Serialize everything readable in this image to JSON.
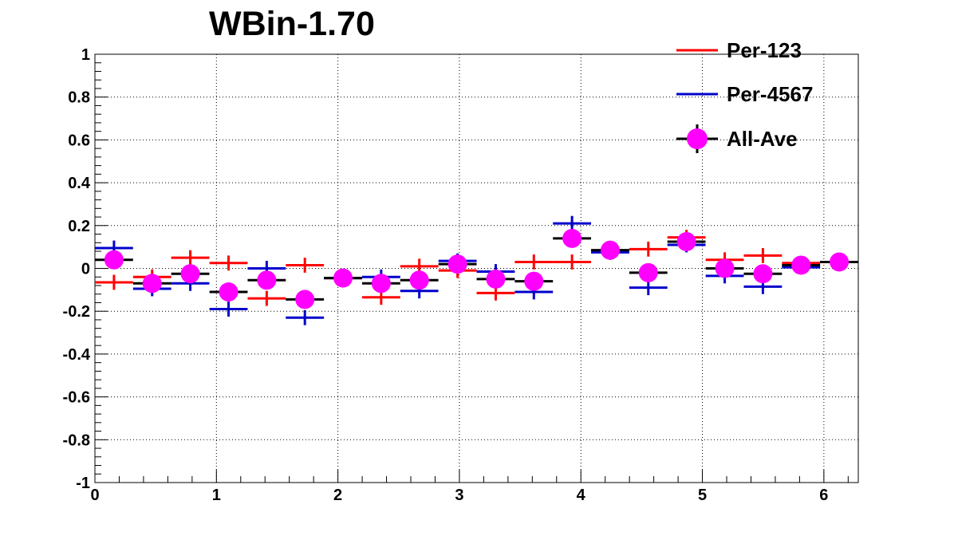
{
  "chart_data": {
    "type": "scatter",
    "title": "WBin-1.70",
    "xlabel": "",
    "ylabel": "",
    "xlim": [
      0,
      6.2832
    ],
    "ylim": [
      -1,
      1
    ],
    "x_ticks": [
      0,
      1,
      2,
      3,
      4,
      5,
      6
    ],
    "y_ticks": [
      -1,
      -0.8,
      -0.6,
      -0.4,
      -0.2,
      0,
      0.2,
      0.4,
      0.6,
      0.8,
      1
    ],
    "y_tick_labels": [
      "-1",
      "-0.8",
      "-0.6",
      "-0.4",
      "-0.2",
      "0",
      "0.2",
      "0.4",
      "0.6",
      "0.8",
      "1"
    ],
    "grid": true,
    "legend_position": "top-right",
    "bin_half_width": 0.157,
    "series": [
      {
        "name": "Per-123",
        "color": "#ff0000",
        "marker": "error-bar",
        "x": [
          0.157,
          0.471,
          0.785,
          1.1,
          1.414,
          1.728,
          2.042,
          2.356,
          2.67,
          2.985,
          3.299,
          3.613,
          3.927,
          4.241,
          4.555,
          4.869,
          5.184,
          5.498,
          5.812,
          6.126
        ],
        "y": [
          -0.065,
          -0.04,
          0.05,
          0.025,
          -0.14,
          0.015,
          -0.045,
          -0.135,
          0.01,
          -0.01,
          -0.115,
          0.03,
          0.03,
          0.08,
          0.09,
          0.145,
          0.04,
          0.06,
          0.025,
          0.03
        ],
        "err": [
          0.035,
          0.035,
          0.035,
          0.035,
          0.035,
          0.035,
          0.03,
          0.035,
          0.035,
          0.035,
          0.035,
          0.035,
          0.035,
          0.035,
          0.035,
          0.035,
          0.035,
          0.035,
          0.03,
          0.03
        ]
      },
      {
        "name": "Per-4567",
        "color": "#0000cc",
        "marker": "error-bar",
        "x": [
          0.157,
          0.471,
          0.785,
          1.1,
          1.414,
          1.728,
          2.042,
          2.356,
          2.67,
          2.985,
          3.299,
          3.613,
          3.927,
          4.241,
          4.555,
          4.869,
          5.184,
          5.498,
          5.812,
          6.126
        ],
        "y": [
          0.095,
          -0.095,
          -0.07,
          -0.19,
          0.0,
          -0.23,
          -0.045,
          -0.04,
          -0.105,
          0.035,
          -0.015,
          -0.11,
          0.21,
          0.075,
          -0.09,
          0.11,
          -0.035,
          -0.085,
          0.005,
          0.03
        ],
        "err": [
          0.035,
          0.035,
          0.035,
          0.035,
          0.035,
          0.035,
          0.03,
          0.035,
          0.035,
          0.035,
          0.035,
          0.035,
          0.035,
          0.035,
          0.035,
          0.035,
          0.035,
          0.035,
          0.03,
          0.03
        ]
      },
      {
        "name": "All-Ave",
        "color": "#ff00ff",
        "marker": "circle",
        "x": [
          0.157,
          0.471,
          0.785,
          1.1,
          1.414,
          1.728,
          2.042,
          2.356,
          2.67,
          2.985,
          3.299,
          3.613,
          3.927,
          4.241,
          4.555,
          4.869,
          5.184,
          5.498,
          5.812,
          6.126
        ],
        "y": [
          0.04,
          -0.07,
          -0.025,
          -0.11,
          -0.055,
          -0.145,
          -0.045,
          -0.07,
          -0.055,
          0.02,
          -0.05,
          -0.06,
          0.14,
          0.085,
          -0.02,
          0.125,
          0.0,
          -0.025,
          0.015,
          0.03
        ],
        "err": [
          0.025,
          0.025,
          0.025,
          0.025,
          0.025,
          0.025,
          0.02,
          0.025,
          0.025,
          0.025,
          0.025,
          0.025,
          0.025,
          0.025,
          0.025,
          0.025,
          0.025,
          0.025,
          0.02,
          0.02
        ]
      }
    ]
  }
}
